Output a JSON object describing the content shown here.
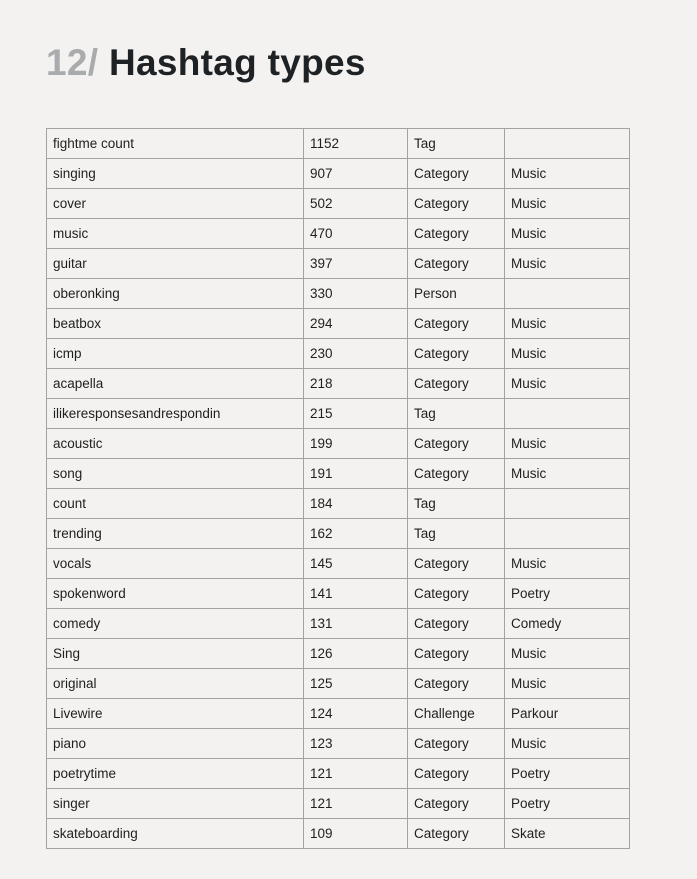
{
  "title": {
    "number": "12/",
    "text": "Hashtag types"
  },
  "rows": [
    [
      "fightme count",
      "1152",
      "Tag",
      ""
    ],
    [
      "singing",
      "907",
      "Category",
      "Music"
    ],
    [
      "cover",
      "502",
      "Category",
      "Music"
    ],
    [
      "music",
      "470",
      "Category",
      "Music"
    ],
    [
      "guitar",
      "397",
      "Category",
      "Music"
    ],
    [
      "oberonking",
      "330",
      "Person",
      ""
    ],
    [
      "beatbox",
      "294",
      "Category",
      "Music"
    ],
    [
      "icmp",
      "230",
      "Category",
      "Music"
    ],
    [
      "acapella",
      "218",
      "Category",
      "Music"
    ],
    [
      "ilikeresponsesandrespondin",
      "215",
      "Tag",
      ""
    ],
    [
      "acoustic",
      "199",
      "Category",
      "Music"
    ],
    [
      "song",
      "191",
      "Category",
      "Music"
    ],
    [
      "count",
      "184",
      "Tag",
      ""
    ],
    [
      "trending",
      "162",
      "Tag",
      ""
    ],
    [
      "vocals",
      "145",
      "Category",
      "Music"
    ],
    [
      "spokenword",
      "141",
      "Category",
      "Poetry"
    ],
    [
      "comedy",
      "131",
      "Category",
      "Comedy"
    ],
    [
      "Sing",
      "126",
      "Category",
      "Music"
    ],
    [
      "original",
      "125",
      "Category",
      "Music"
    ],
    [
      "Livewire",
      "124",
      "Challenge",
      "Parkour"
    ],
    [
      "piano",
      "123",
      "Category",
      "Music"
    ],
    [
      "poetrytime",
      "121",
      "Category",
      "Poetry"
    ],
    [
      "singer",
      "121",
      "Category",
      "Poetry"
    ],
    [
      "skateboarding",
      "109",
      "Category",
      "Skate"
    ]
  ]
}
